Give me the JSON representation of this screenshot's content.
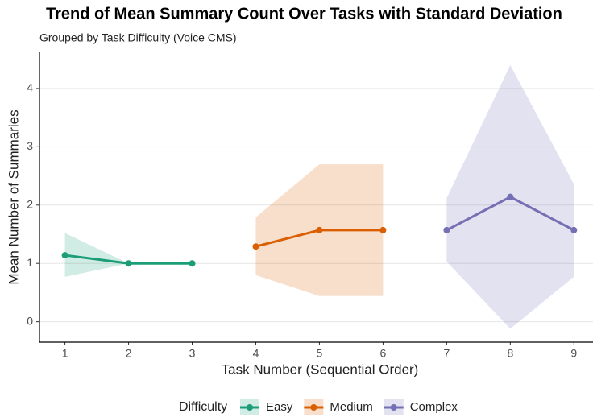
{
  "chart_data": {
    "type": "line",
    "title": "Trend of Mean Summary Count Over Tasks with Standard Deviation",
    "subtitle": "Grouped by Task Difficulty (Voice CMS)",
    "x_label": "Task Number (Sequential Order)",
    "y_label": "Mean Number of Summaries",
    "legend_title": "Difficulty",
    "xlim": [
      0.6,
      9.3
    ],
    "xticks": [
      1,
      2,
      3,
      4,
      5,
      6,
      7,
      8,
      9
    ],
    "ylim": [
      -0.35,
      4.62
    ],
    "yticks": [
      0,
      1,
      2,
      3,
      4
    ],
    "grid": true,
    "legend": "bottom",
    "series": [
      {
        "name": "Easy",
        "color": "#1b9e77",
        "x": [
          1,
          2,
          3
        ],
        "values": [
          1.14,
          1.0,
          1.0
        ],
        "lower": [
          0.77,
          1.0,
          1.0
        ],
        "upper": [
          1.52,
          1.0,
          1.0
        ]
      },
      {
        "name": "Medium",
        "color": "#d95f02",
        "x": [
          4,
          5,
          6
        ],
        "values": [
          1.29,
          1.57,
          1.57
        ],
        "lower": [
          0.8,
          0.44,
          0.44
        ],
        "upper": [
          1.79,
          2.7,
          2.7
        ]
      },
      {
        "name": "Complex",
        "color": "#7570b3",
        "x": [
          7,
          8,
          9
        ],
        "values": [
          1.57,
          2.14,
          1.57
        ],
        "lower": [
          1.03,
          -0.12,
          0.77
        ],
        "upper": [
          2.12,
          4.4,
          2.36
        ]
      }
    ]
  }
}
